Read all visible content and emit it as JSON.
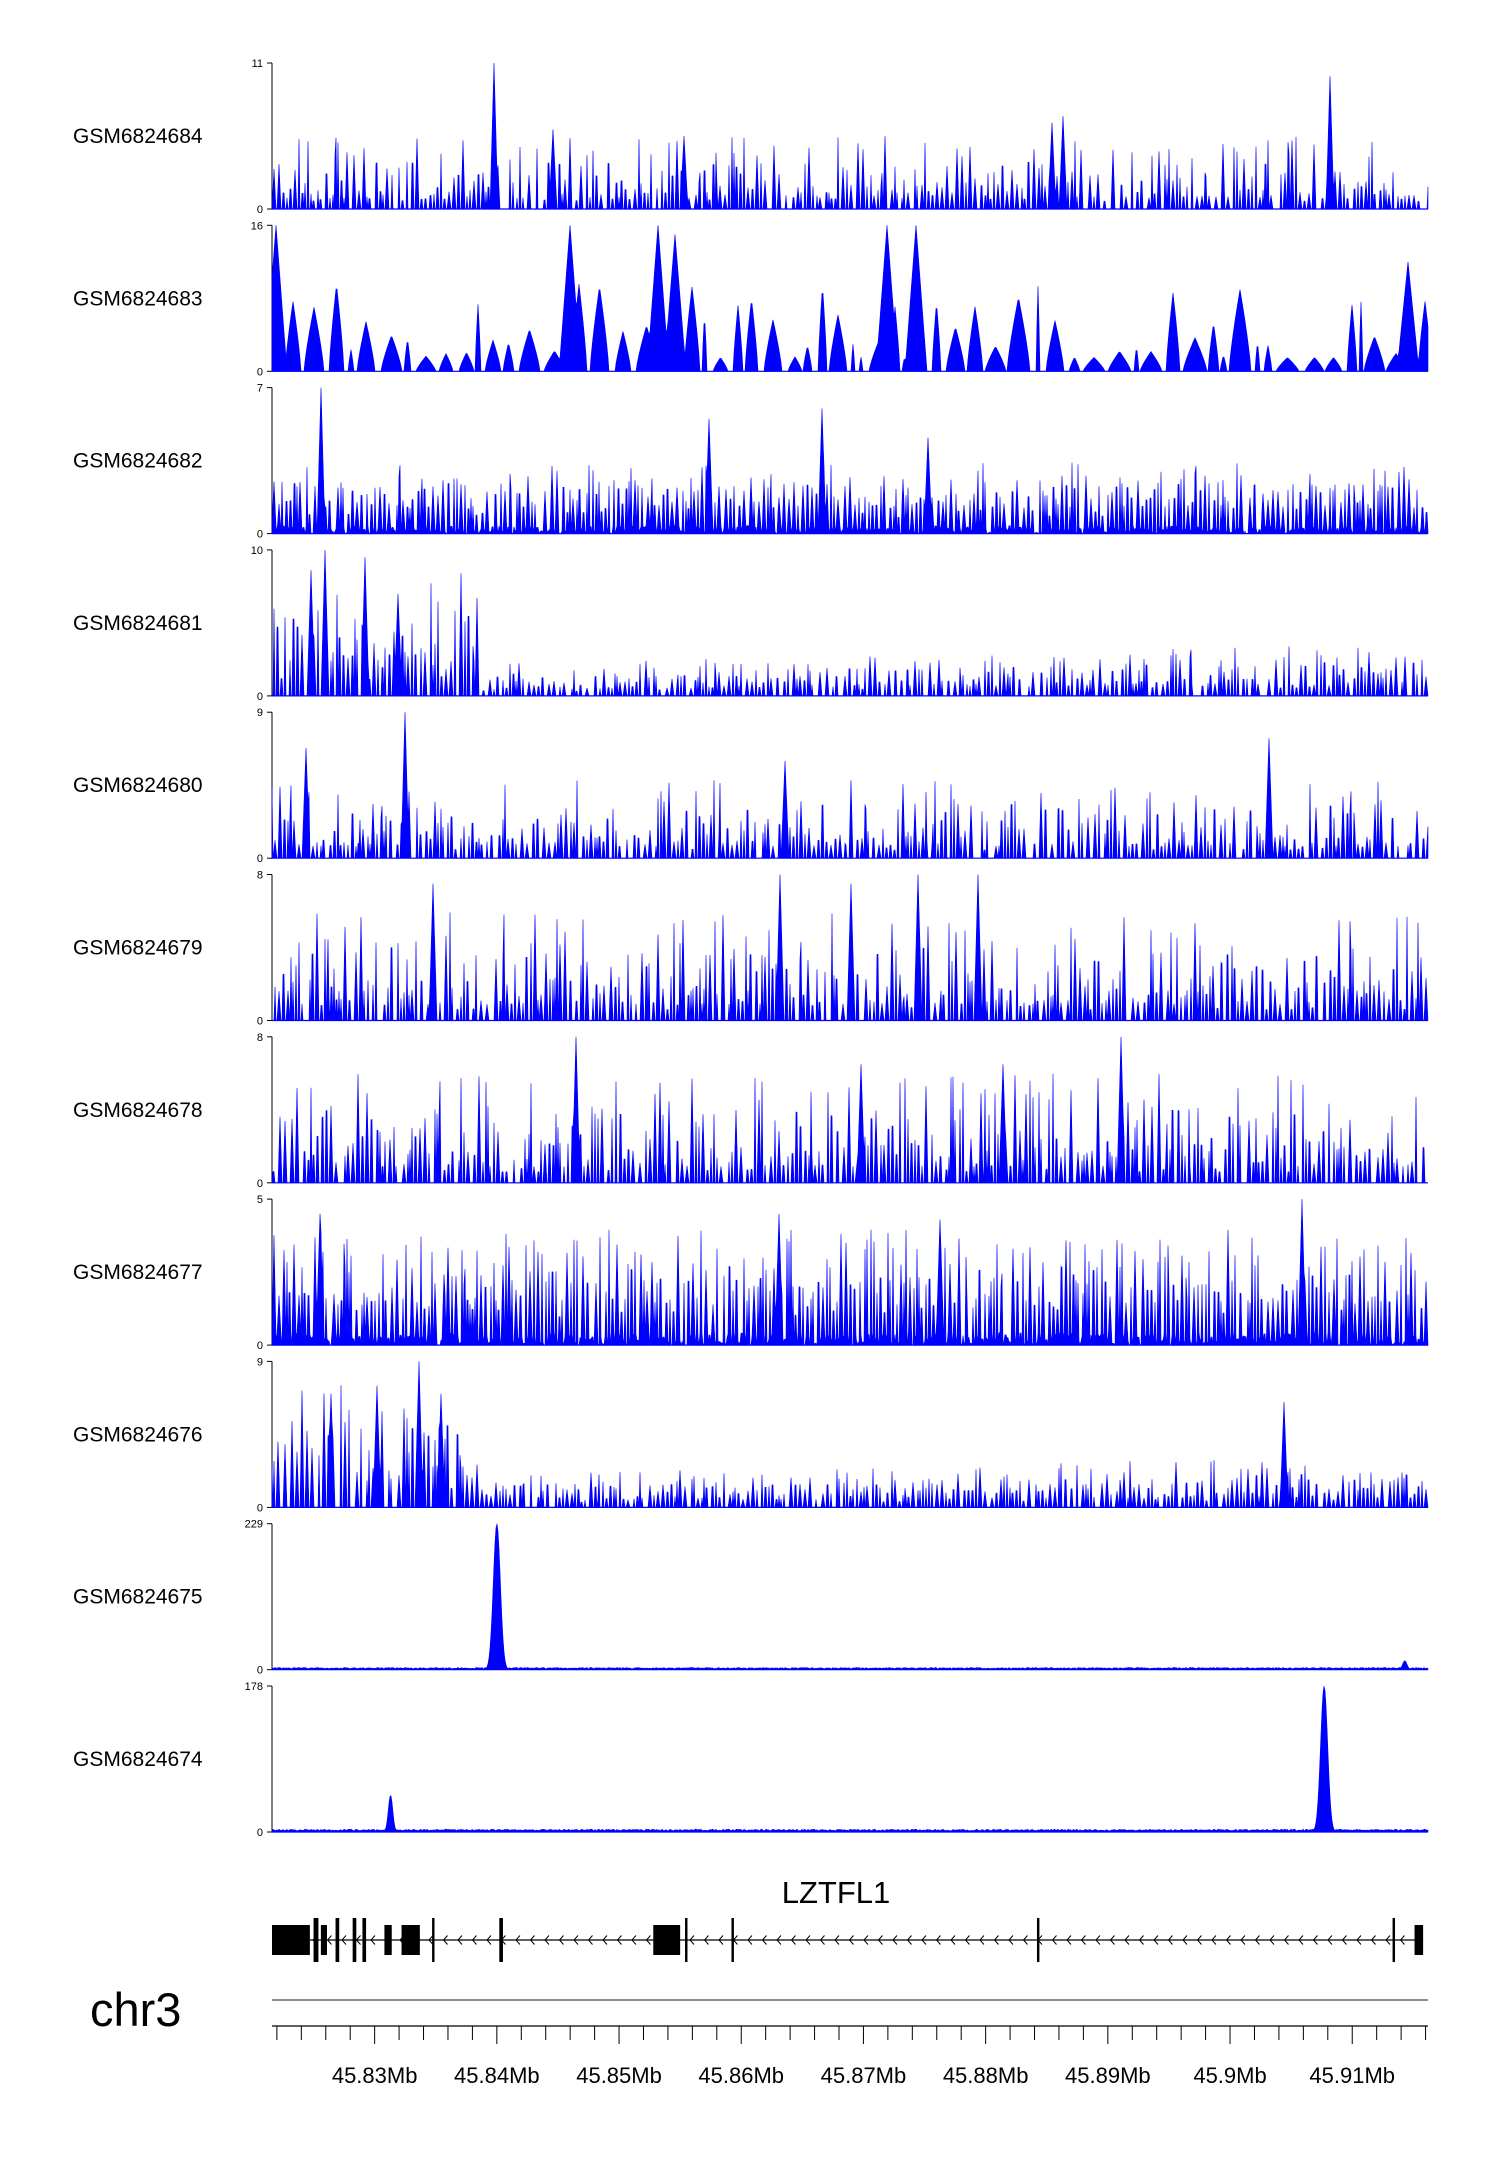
{
  "chart_data": {
    "type": "area",
    "description_note": "",
    "chromosome": "chr3",
    "x_range_mb": [
      45.8216,
      45.9162
    ],
    "x_ticks": [
      45.83,
      45.84,
      45.85,
      45.86,
      45.87,
      45.88,
      45.89,
      45.9,
      45.91
    ],
    "x_tick_labels": [
      "45.83Mb",
      "45.84Mb",
      "45.85Mb",
      "45.86Mb",
      "45.87Mb",
      "45.88Mb",
      "45.89Mb",
      "45.9Mb",
      "45.91Mb"
    ],
    "fill_color": "#0000ff",
    "tracks": [
      {
        "name": "GSM6824684",
        "ymax": 11,
        "ymax_label": "11",
        "ymin_label": "0",
        "pattern": "spiky",
        "noise": 5.5,
        "bias": 0.0,
        "peaks": [
          [
            45.8398,
            11
          ],
          [
            45.9082,
            10
          ],
          [
            45.8863,
            7
          ],
          [
            45.8854,
            6.5
          ],
          [
            45.8446,
            6
          ],
          [
            45.8553,
            5.5
          ]
        ]
      },
      {
        "name": "GSM6824683",
        "ymax": 16,
        "ymax_label": "16",
        "ymin_label": "0",
        "pattern": "sparse",
        "noise": 10,
        "bias": 0.0,
        "peaks": [
          [
            45.8219,
            16
          ],
          [
            45.8719,
            16
          ],
          [
            45.8532,
            16
          ],
          [
            45.8743,
            16
          ],
          [
            45.846,
            16
          ],
          [
            45.8546,
            15
          ],
          [
            45.9146,
            12
          ]
        ]
      },
      {
        "name": "GSM6824682",
        "ymax": 7,
        "ymax_label": "7",
        "ymin_label": "0",
        "pattern": "dense",
        "noise": 3.2,
        "bias": 0.0,
        "peaks": [
          [
            45.8256,
            7
          ],
          [
            45.8666,
            6
          ],
          [
            45.8574,
            5.5
          ],
          [
            45.8753,
            4.6
          ]
        ]
      },
      {
        "name": "GSM6824681",
        "ymax": 10,
        "ymax_label": "10",
        "ymin_label": "0",
        "pattern": "decay",
        "noise": 1.2,
        "bias": 0.0,
        "peaks": [
          [
            45.8259,
            10
          ],
          [
            45.8292,
            9.5
          ],
          [
            45.8248,
            8.6
          ],
          [
            45.8319,
            7
          ]
        ]
      },
      {
        "name": "GSM6824680",
        "ymax": 9,
        "ymax_label": "9",
        "ymin_label": "0",
        "pattern": "spiky",
        "noise": 5.0,
        "bias": 0.0,
        "peaks": [
          [
            45.8325,
            9
          ],
          [
            45.9032,
            7.4
          ],
          [
            45.8244,
            6.8
          ],
          [
            45.8636,
            6
          ]
        ]
      },
      {
        "name": "GSM6824679",
        "ymax": 8,
        "ymax_label": "8",
        "ymin_label": "0",
        "pattern": "spiky",
        "noise": 6.0,
        "bias": 0.0,
        "peaks": [
          [
            45.8632,
            8
          ],
          [
            45.8745,
            8
          ],
          [
            45.8794,
            8
          ],
          [
            45.869,
            7.5
          ],
          [
            45.8348,
            7.5
          ]
        ]
      },
      {
        "name": "GSM6824678",
        "ymax": 8,
        "ymax_label": "8",
        "ymin_label": "0",
        "pattern": "spiky",
        "noise": 6.0,
        "bias": 0.0,
        "peaks": [
          [
            45.8465,
            8
          ],
          [
            45.8911,
            8
          ],
          [
            45.8698,
            6.5
          ],
          [
            45.8814,
            6.5
          ]
        ]
      },
      {
        "name": "GSM6824677",
        "ymax": 5,
        "ymax_label": "5",
        "ymin_label": "0",
        "pattern": "dense",
        "noise": 3.6,
        "bias": 0.0,
        "peaks": [
          [
            45.9059,
            5
          ],
          [
            45.8255,
            4.5
          ],
          [
            45.8631,
            4.5
          ],
          [
            45.8763,
            4.3
          ]
        ]
      },
      {
        "name": "GSM6824676",
        "ymax": 9,
        "ymax_label": "9",
        "ymin_label": "0",
        "pattern": "decay",
        "noise": 2.2,
        "bias": 0.0,
        "peaks": [
          [
            45.8336,
            9
          ],
          [
            45.8264,
            7
          ],
          [
            45.8302,
            7.5
          ],
          [
            45.8354,
            7
          ],
          [
            45.9044,
            6.5
          ]
        ]
      },
      {
        "name": "GSM6824675",
        "ymax": 229,
        "ymax_label": "229",
        "ymin_label": "0",
        "pattern": "flat",
        "noise": 2,
        "bias": 1.5,
        "peaks": [
          [
            45.84,
            229
          ],
          [
            45.9143,
            14
          ]
        ]
      },
      {
        "name": "GSM6824674",
        "ymax": 178,
        "ymax_label": "178",
        "ymin_label": "0",
        "pattern": "flat",
        "noise": 2,
        "bias": 1.5,
        "peaks": [
          [
            45.9077,
            178
          ],
          [
            45.8313,
            45
          ]
        ]
      }
    ],
    "gene": {
      "name": "LZTFL1",
      "strand": "-",
      "start_mb": 45.8216,
      "end_mb": 45.9158,
      "exons_mb": [
        [
          45.8216,
          45.8247
        ],
        [
          45.825,
          45.8254
        ],
        [
          45.8256,
          45.8261
        ],
        [
          45.8268,
          45.8271
        ],
        [
          45.8282,
          45.8285
        ],
        [
          45.829,
          45.8293
        ],
        [
          45.8308,
          45.8314
        ],
        [
          45.8322,
          45.8337
        ],
        [
          45.8347,
          45.8349
        ],
        [
          45.8402,
          45.8405
        ],
        [
          45.8528,
          45.855
        ],
        [
          45.8554,
          45.8556
        ],
        [
          45.8592,
          45.8594
        ],
        [
          45.8842,
          45.8844
        ],
        [
          45.9133,
          45.9135
        ],
        [
          45.9151,
          45.9158
        ]
      ]
    }
  }
}
